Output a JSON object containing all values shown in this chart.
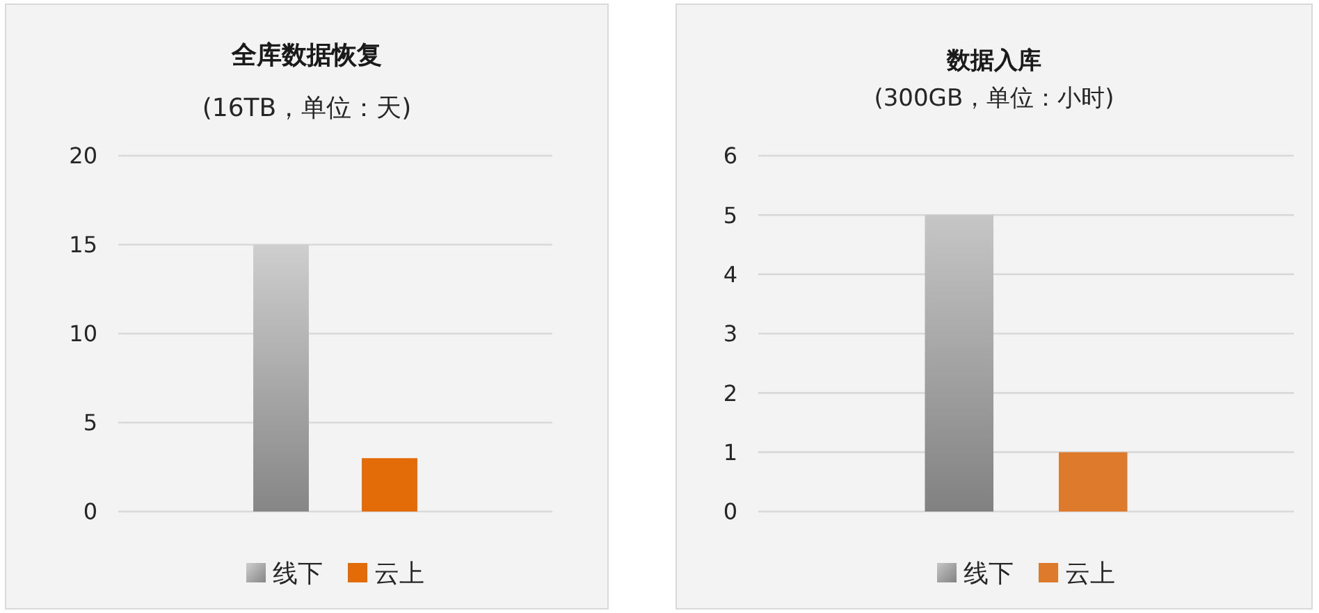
{
  "chart_data": [
    {
      "type": "bar",
      "title": "全库数据恢复",
      "subtitle": "(16TB，单位：天)",
      "categories": [
        null
      ],
      "series": [
        {
          "name": "线下",
          "color": "#a6a6a6",
          "values": [
            15
          ]
        },
        {
          "name": "云上",
          "color": "#e36c09",
          "values": [
            3
          ]
        }
      ],
      "ylim": [
        0,
        20
      ],
      "yticks": [
        0,
        5,
        10,
        15,
        20
      ],
      "grid": "y",
      "legend": "bottom",
      "tick_labels": "y"
    },
    {
      "type": "bar",
      "title": "数据入库",
      "subtitle": "(300GB，单位：小时)",
      "categories": [
        null
      ],
      "series": [
        {
          "name": "线下",
          "color": "#a0a0a0",
          "values": [
            5
          ]
        },
        {
          "name": "云上",
          "color": "#dd7a2b",
          "values": [
            1
          ]
        }
      ],
      "ylim": [
        0,
        6
      ],
      "yticks": [
        0,
        1,
        2,
        3,
        4,
        5,
        6
      ],
      "grid": "y",
      "legend": "bottom",
      "tick_labels": "y"
    }
  ]
}
